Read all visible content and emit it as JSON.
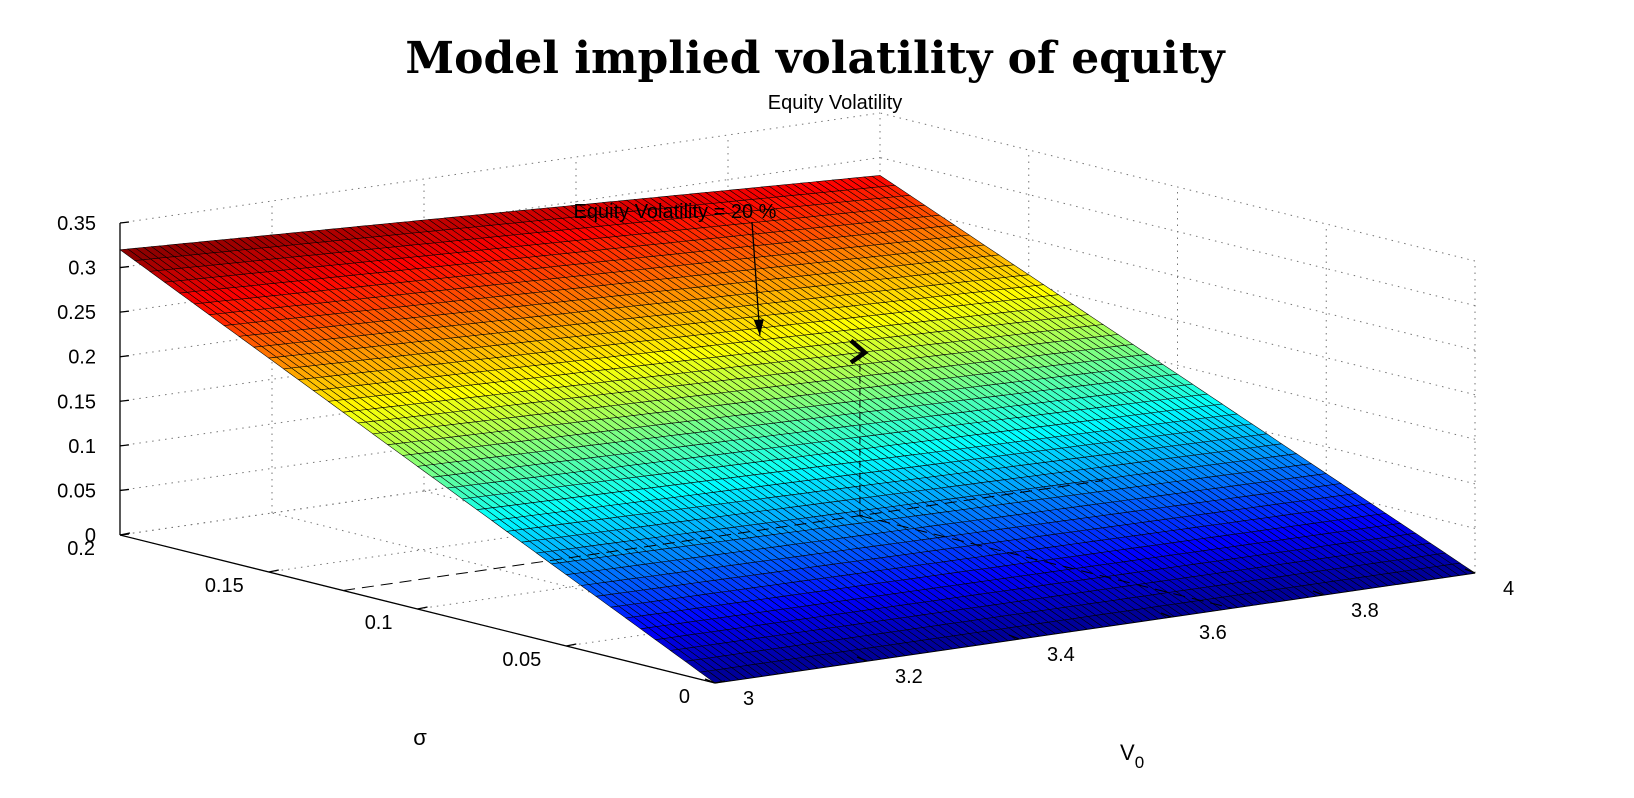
{
  "figure": {
    "suptitle": "Model implied volatility of equity",
    "axes_title": "Equity Volatility"
  },
  "chart_data": {
    "type": "surface",
    "title": "Equity Volatility",
    "xlabel": "V0",
    "xlabel_main": "V",
    "xlabel_sub": "0",
    "ylabel": "σ",
    "x_ticks": [
      3,
      3.2,
      3.4,
      3.6,
      3.8,
      4
    ],
    "x_tick_labels": [
      "3",
      "3.2",
      "3.4",
      "3.6",
      "3.8",
      "4"
    ],
    "y_ticks": [
      0,
      0.05,
      0.1,
      0.15,
      0.2
    ],
    "y_tick_labels": [
      "0",
      "0.05",
      "0.1",
      "0.15",
      "0.2"
    ],
    "z_ticks": [
      0,
      0.05,
      0.1,
      0.15,
      0.2,
      0.25,
      0.3,
      0.35
    ],
    "z_tick_labels": [
      "0",
      "0.05",
      "0.1",
      "0.15",
      "0.2",
      "0.25",
      "0.3",
      "0.35"
    ],
    "xlim": [
      3,
      4
    ],
    "ylim": [
      0,
      0.2
    ],
    "zlim": [
      0,
      0.35
    ],
    "x_range": [
      3.0,
      4.0
    ],
    "y_range": [
      0.0,
      0.2
    ],
    "grid": true,
    "colormap": "jet",
    "colormap_stops": [
      "#00008f",
      "#0000ff",
      "#00ffff",
      "#ffff00",
      "#ff0000",
      "#800000"
    ],
    "edge_color": "#000000",
    "corner_values": [
      {
        "x": 3.0,
        "y": 0.0,
        "z": 0.0
      },
      {
        "x": 4.0,
        "y": 0.0,
        "z": 0.0
      },
      {
        "x": 3.0,
        "y": 0.2,
        "z": 0.32
      },
      {
        "x": 4.0,
        "y": 0.2,
        "z": 0.28
      }
    ],
    "annotation": {
      "text": "Equity Volatility = 20 %",
      "marker": {
        "x": 3.68,
        "y": 0.125,
        "z": 0.2
      }
    }
  }
}
